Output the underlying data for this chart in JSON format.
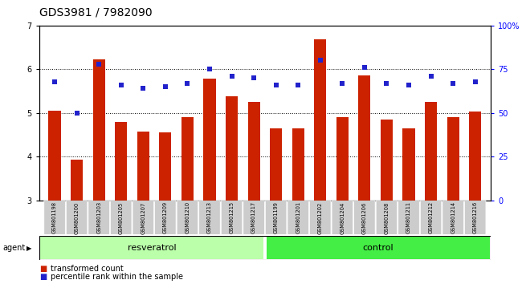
{
  "title": "GDS3981 / 7982090",
  "samples": [
    "GSM801198",
    "GSM801200",
    "GSM801203",
    "GSM801205",
    "GSM801207",
    "GSM801209",
    "GSM801210",
    "GSM801213",
    "GSM801215",
    "GSM801217",
    "GSM801199",
    "GSM801201",
    "GSM801202",
    "GSM801204",
    "GSM801206",
    "GSM801208",
    "GSM801211",
    "GSM801212",
    "GSM801214",
    "GSM801216"
  ],
  "bar_values": [
    5.05,
    3.93,
    6.22,
    4.8,
    4.58,
    4.55,
    4.9,
    5.78,
    5.38,
    5.25,
    4.65,
    4.65,
    6.68,
    4.9,
    5.85,
    4.85,
    4.65,
    5.25,
    4.9,
    5.03
  ],
  "pct_values": [
    68,
    50,
    78,
    66,
    64,
    65,
    67,
    75,
    71,
    70,
    66,
    66,
    80,
    67,
    76,
    67,
    66,
    71,
    67,
    68
  ],
  "resveratrol_count": 10,
  "control_count": 10,
  "ylim_left": [
    3,
    7
  ],
  "ylim_right": [
    0,
    100
  ],
  "yticks_left": [
    3,
    4,
    5,
    6,
    7
  ],
  "yticks_right": [
    0,
    25,
    50,
    75,
    100
  ],
  "bar_color": "#cc2200",
  "dot_color": "#2222cc",
  "resveratrol_bg": "#bbffaa",
  "control_bg": "#44ee44",
  "sample_bg": "#cccccc",
  "grid_color": "#000000",
  "title_fontsize": 10,
  "tick_fontsize": 7,
  "label_fontsize": 8,
  "agent_label": "agent",
  "resveratrol_label": "resveratrol",
  "control_label": "control",
  "legend_bar": "transformed count",
  "legend_dot": "percentile rank within the sample"
}
